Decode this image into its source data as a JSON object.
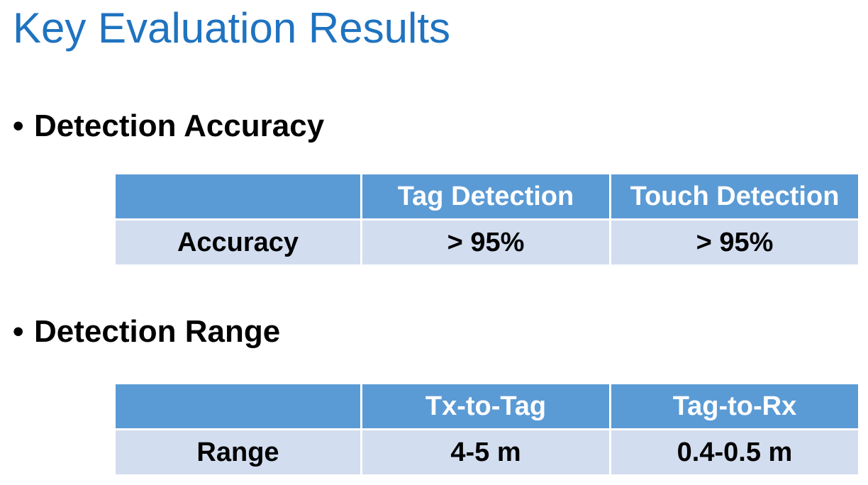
{
  "slide": {
    "title": "Key Evaluation Results",
    "bullet_char": "•",
    "sections": [
      {
        "heading": "Detection Accuracy",
        "table": {
          "headers": [
            "",
            "Tag Detection",
            "Touch Detection"
          ],
          "rows": [
            [
              "Accuracy",
              "> 95%",
              "> 95%"
            ]
          ]
        }
      },
      {
        "heading": "Detection Range",
        "table": {
          "headers": [
            "",
            "Tx-to-Tag",
            "Tag-to-Rx"
          ],
          "rows": [
            [
              "Range",
              "4-5 m",
              "0.4-0.5 m"
            ]
          ]
        }
      }
    ]
  },
  "colors": {
    "title": "#1f73c0",
    "table_header_bg": "#5b9bd5",
    "table_body_bg": "#d2ddef",
    "table_header_text": "#ffffff"
  }
}
